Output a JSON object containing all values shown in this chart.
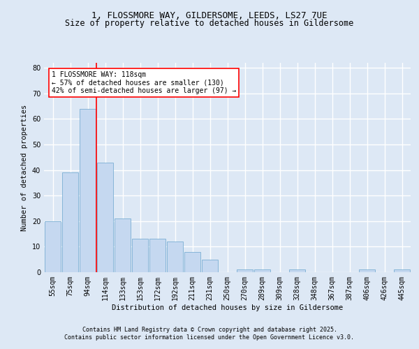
{
  "title_line1": "1, FLOSSMORE WAY, GILDERSOME, LEEDS, LS27 7UE",
  "title_line2": "Size of property relative to detached houses in Gildersome",
  "categories": [
    "55sqm",
    "75sqm",
    "94sqm",
    "114sqm",
    "133sqm",
    "153sqm",
    "172sqm",
    "192sqm",
    "211sqm",
    "231sqm",
    "250sqm",
    "270sqm",
    "289sqm",
    "309sqm",
    "328sqm",
    "348sqm",
    "367sqm",
    "387sqm",
    "406sqm",
    "426sqm",
    "445sqm"
  ],
  "values": [
    20,
    39,
    64,
    43,
    21,
    13,
    13,
    12,
    8,
    5,
    0,
    1,
    1,
    0,
    1,
    0,
    0,
    0,
    1,
    0,
    1
  ],
  "bar_color": "#c5d8f0",
  "bar_edge_color": "#7bafd4",
  "vline_index": 3,
  "vline_color": "red",
  "annotation_text": "1 FLOSSMORE WAY: 118sqm\n← 57% of detached houses are smaller (130)\n42% of semi-detached houses are larger (97) →",
  "xlabel": "Distribution of detached houses by size in Gildersome",
  "ylabel": "Number of detached properties",
  "ylim": [
    0,
    82
  ],
  "yticks": [
    0,
    10,
    20,
    30,
    40,
    50,
    60,
    70,
    80
  ],
  "footer_line1": "Contains HM Land Registry data © Crown copyright and database right 2025.",
  "footer_line2": "Contains public sector information licensed under the Open Government Licence v3.0.",
  "bg_color": "#dde8f5",
  "grid_color": "white",
  "title_fontsize": 9,
  "subtitle_fontsize": 8.5,
  "axis_label_fontsize": 7.5,
  "tick_fontsize": 7,
  "annotation_fontsize": 7,
  "footer_fontsize": 6
}
